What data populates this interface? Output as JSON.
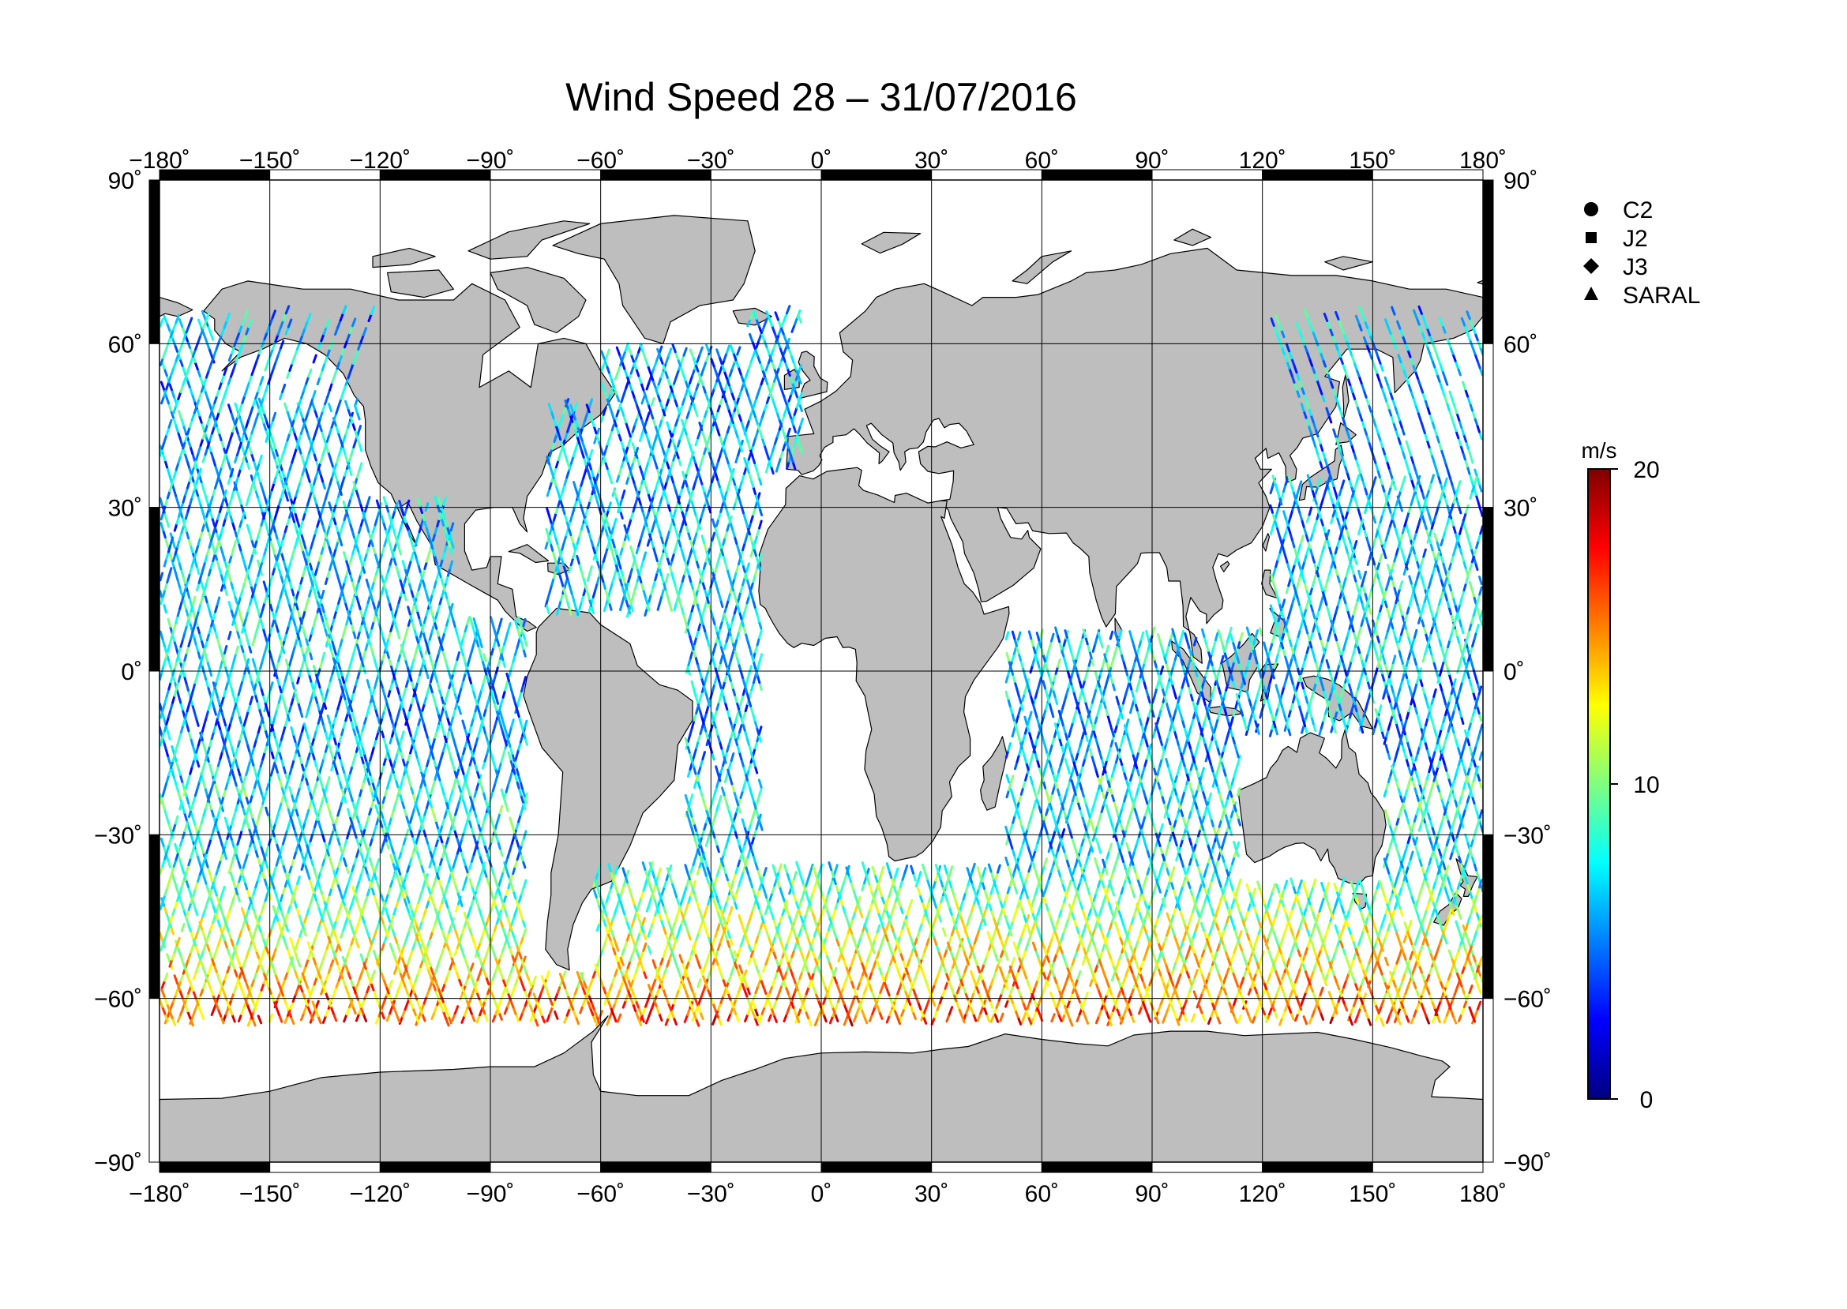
{
  "title": "Wind Speed 28 – 31/07/2016",
  "map": {
    "lon_ticks": [
      "−180˚",
      "−150˚",
      "−120˚",
      "−90˚",
      "−60˚",
      "−30˚",
      "0˚",
      "30˚",
      "60˚",
      "90˚",
      "120˚",
      "150˚",
      "180˚"
    ],
    "lat_ticks": [
      "90˚",
      "60˚",
      "30˚",
      "0˚",
      "−30˚",
      "−60˚",
      "−90˚"
    ],
    "land_color": "#bebebe",
    "ocean_color": "#ffffff"
  },
  "legend": {
    "items": [
      {
        "symbol": "circle",
        "label": "C2"
      },
      {
        "symbol": "square",
        "label": "J2"
      },
      {
        "symbol": "diamond",
        "label": "J3"
      },
      {
        "symbol": "triangle",
        "label": "SARAL"
      }
    ]
  },
  "colorbar": {
    "unit": "m/s",
    "tick_labels": [
      "0",
      "10",
      "20"
    ],
    "ticks": [
      0,
      10,
      20
    ],
    "range": [
      0,
      20
    ],
    "colormap": [
      "#00007f",
      "#0000ff",
      "#007fff",
      "#00ffff",
      "#7fff7f",
      "#ffff00",
      "#ff7f00",
      "#ff0000",
      "#7f0000"
    ]
  }
}
